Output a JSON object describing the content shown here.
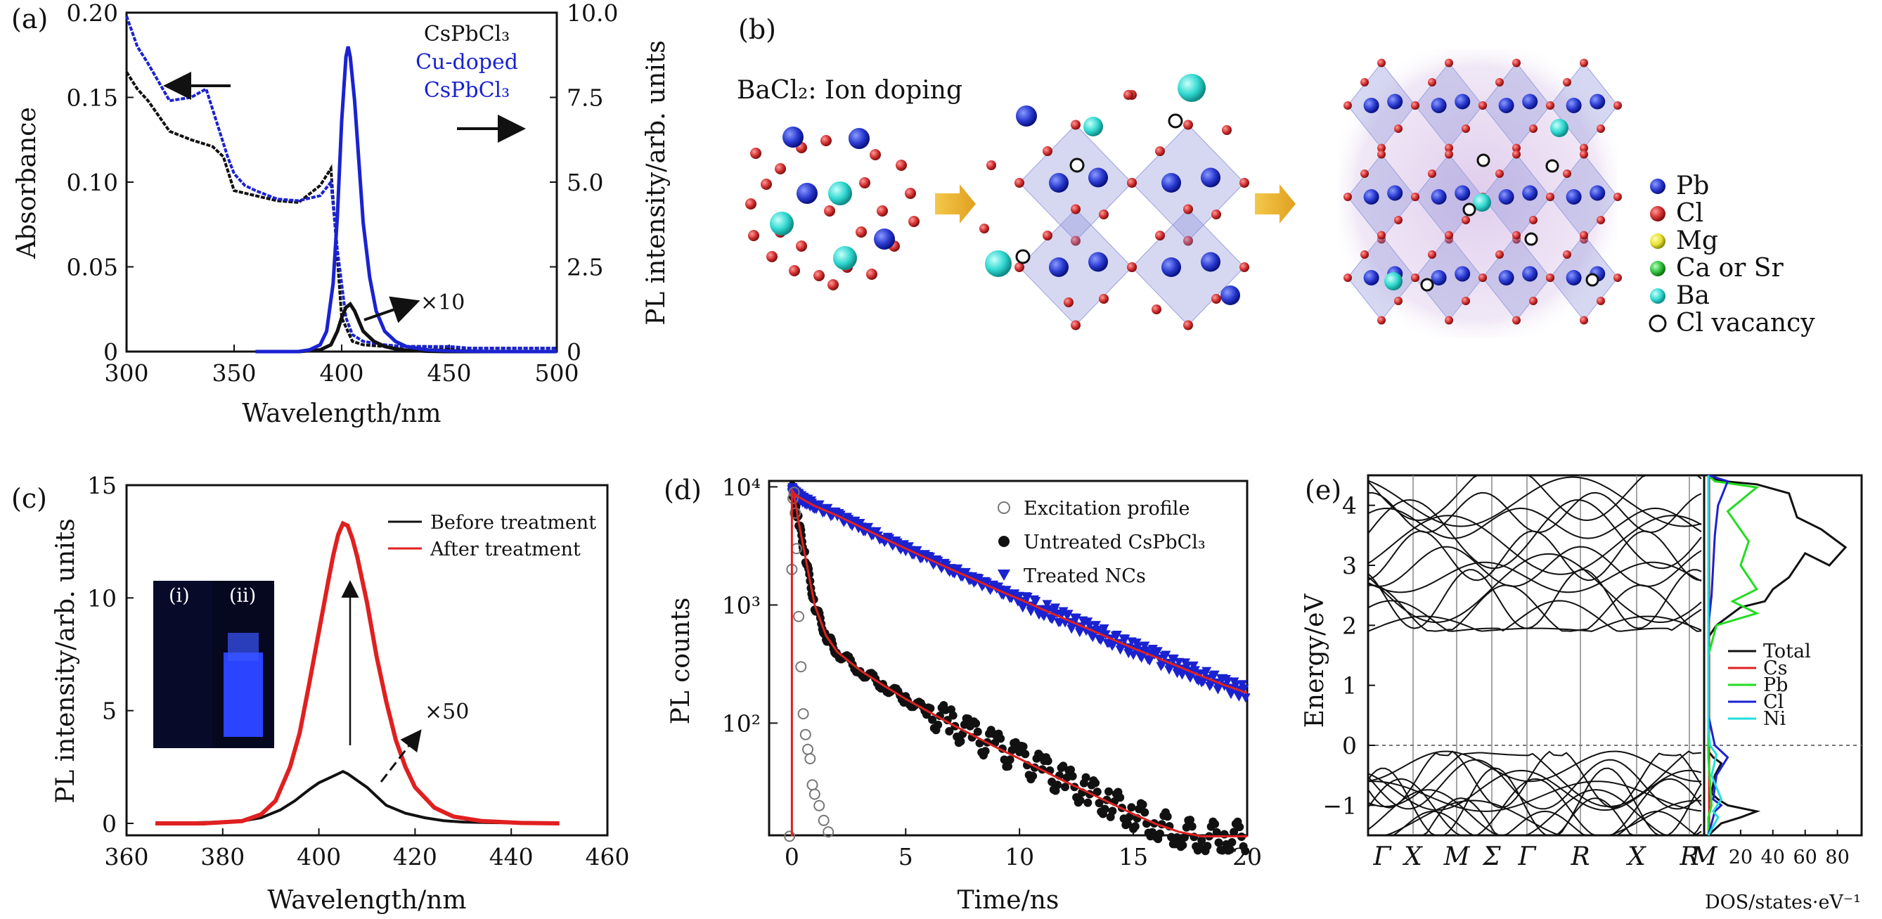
{
  "panels": {
    "a": {
      "label": "(a)",
      "xlabel": "Wavelength/nm",
      "ylabel_left": "Absorbance",
      "ylabel_right": "PL intensity/arb. units",
      "x_ticks": [
        "300",
        "350",
        "400",
        "450",
        "500"
      ],
      "y_ticks_left": [
        "0",
        "0.05",
        "0.10",
        "0.15",
        "0.20"
      ],
      "y_ticks_right": [
        "0",
        "2.5",
        "5.0",
        "7.5",
        "10.0"
      ],
      "legend": [
        "CsPbCl₃",
        "Cu-doped",
        "CsPbCl₃"
      ],
      "annotation": "×10"
    },
    "b": {
      "label": "(b)",
      "title": "BaCl₂: Ion doping",
      "legend": [
        {
          "label": "Pb",
          "color": "#2a3ad0"
        },
        {
          "label": "Cl",
          "color": "#d23030"
        },
        {
          "label": "Mg",
          "color": "#e8e030"
        },
        {
          "label": "Ca or Sr",
          "color": "#30c040"
        },
        {
          "label": "Ba",
          "color": "#30d8d0"
        },
        {
          "label": "Cl vacancy",
          "color": "#ffffff"
        }
      ]
    },
    "c": {
      "label": "(c)",
      "xlabel": "Wavelength/nm",
      "ylabel": "PL intensity/arb. units",
      "x_ticks": [
        "360",
        "380",
        "400",
        "420",
        "440",
        "460"
      ],
      "y_ticks": [
        "0",
        "5",
        "10",
        "15"
      ],
      "legend": [
        "Before treatment",
        "After treatment"
      ],
      "inset_labels": [
        "(i)",
        "(ii)"
      ],
      "annotation": "×50"
    },
    "d": {
      "label": "(d)",
      "xlabel": "Time/ns",
      "ylabel": "PL counts",
      "x_ticks": [
        "0",
        "5",
        "10",
        "15",
        "20"
      ],
      "y_ticks": [
        "10²",
        "10³",
        "10⁴"
      ],
      "legend": [
        "Excitation profile",
        "Untreated CsPbCl₃",
        "Treated NCs"
      ]
    },
    "e": {
      "label": "(e)",
      "ylabel": "Energy/eV",
      "y_ticks": [
        "4",
        "3",
        "2",
        "1",
        "0",
        "−1"
      ],
      "k_labels": [
        "Γ",
        "X",
        "M",
        "Σ",
        "Γ",
        "R",
        "X",
        "R",
        "M"
      ],
      "dos_ticks": [
        "20",
        "40",
        "60",
        "80"
      ],
      "dos_label": "DOS/states·eV⁻¹",
      "legend": [
        "Total",
        "Cs",
        "Pb",
        "Cl",
        "Ni"
      ]
    }
  },
  "chart_data": [
    {
      "panel": "a",
      "type": "line",
      "xlim": [
        300,
        500
      ],
      "ylim": [
        0,
        0.2
      ],
      "y2lim": [
        0,
        10
      ],
      "series": [
        {
          "name": "CsPbCl₃",
          "axis": "left",
          "color": "#111111",
          "x": [
            300,
            305,
            310,
            320,
            330,
            340,
            345,
            350,
            360,
            370,
            380,
            390,
            395,
            400,
            405,
            410,
            420,
            430,
            440,
            450,
            460,
            470,
            480,
            490,
            500
          ],
          "y": [
            0.165,
            0.155,
            0.148,
            0.13,
            0.125,
            0.121,
            0.115,
            0.095,
            0.092,
            0.089,
            0.088,
            0.098,
            0.108,
            0.02,
            0.006,
            0.004,
            0.003,
            0.003,
            0.003,
            0.002,
            0.002,
            0.002,
            0.002,
            0.002,
            0.002
          ]
        },
        {
          "name": "Cu-doped CsPbCl₃",
          "axis": "left",
          "color": "#1a22d0",
          "x": [
            300,
            305,
            310,
            320,
            330,
            337,
            342,
            347,
            350,
            355,
            360,
            370,
            380,
            390,
            395,
            398,
            402,
            405,
            410,
            420,
            430,
            440,
            450,
            460,
            470,
            480,
            490,
            500
          ],
          "y": [
            0.198,
            0.18,
            0.17,
            0.148,
            0.15,
            0.155,
            0.135,
            0.115,
            0.105,
            0.098,
            0.095,
            0.09,
            0.089,
            0.092,
            0.1,
            0.06,
            0.02,
            0.01,
            0.006,
            0.004,
            0.003,
            0.003,
            0.003,
            0.002,
            0.002,
            0.002,
            0.002,
            0.002
          ]
        },
        {
          "name": "CsPbCl₃ PL",
          "axis": "right",
          "color": "#111111",
          "x": [
            360,
            380,
            390,
            395,
            398,
            400,
            402,
            404,
            406,
            408,
            410,
            415,
            420,
            425,
            430,
            440,
            450,
            470,
            500
          ],
          "y": [
            0,
            0,
            0.05,
            0.2,
            0.6,
            1.0,
            1.3,
            1.4,
            1.2,
            0.9,
            0.6,
            0.3,
            0.15,
            0.08,
            0.04,
            0.01,
            0,
            0,
            0
          ]
        },
        {
          "name": "Cu-doped CsPbCl₃ PL",
          "axis": "right",
          "color": "#1a22d0",
          "x": [
            360,
            380,
            385,
            390,
            393,
            396,
            398,
            400,
            402,
            403,
            404,
            406,
            408,
            410,
            413,
            416,
            420,
            425,
            430,
            440,
            450,
            470,
            500
          ],
          "y": [
            0,
            0,
            0.05,
            0.2,
            0.6,
            2.0,
            4.0,
            6.8,
            8.7,
            9.0,
            8.7,
            7.4,
            5.6,
            3.8,
            2.2,
            1.2,
            0.6,
            0.3,
            0.15,
            0.05,
            0.02,
            0,
            0
          ]
        }
      ]
    },
    {
      "panel": "c",
      "type": "line",
      "xlim": [
        360,
        460
      ],
      "ylim": [
        0,
        15
      ],
      "series": [
        {
          "name": "Before treatment",
          "color": "#111111",
          "x": [
            366,
            372,
            378,
            384,
            388,
            392,
            395,
            398,
            400,
            402,
            404,
            405,
            406,
            408,
            410,
            412,
            414,
            418,
            422,
            426,
            430,
            436,
            442,
            450
          ],
          "y": [
            0,
            0.02,
            0.05,
            0.1,
            0.25,
            0.6,
            1.0,
            1.5,
            1.8,
            2.0,
            2.2,
            2.3,
            2.2,
            1.9,
            1.6,
            1.2,
            0.8,
            0.45,
            0.25,
            0.12,
            0.06,
            0.03,
            0.02,
            0
          ]
        },
        {
          "name": "After treatment",
          "color": "#e02020",
          "x": [
            366,
            376,
            384,
            388,
            391,
            394,
            396,
            398,
            400,
            402,
            403,
            404,
            405,
            406,
            407,
            408,
            410,
            412,
            414,
            416,
            418,
            420,
            424,
            428,
            434,
            442,
            450
          ],
          "y": [
            0,
            0,
            0.1,
            0.4,
            1.0,
            2.5,
            4.0,
            6.2,
            8.5,
            10.8,
            11.9,
            12.8,
            13.3,
            13.2,
            12.6,
            11.8,
            9.8,
            7.4,
            5.4,
            3.7,
            2.5,
            1.6,
            0.7,
            0.3,
            0.1,
            0.02,
            0
          ]
        }
      ]
    },
    {
      "panel": "d",
      "type": "scatter",
      "xlim": [
        -1,
        20
      ],
      "ylim_log": [
        1.05,
        4.05
      ],
      "series": [
        {
          "name": "Excitation profile",
          "marker": "open-circle",
          "color": "#777777",
          "x": [
            -0.1,
            0,
            0.05,
            0.1,
            0.15,
            0.2,
            0.3,
            0.4,
            0.5,
            0.6,
            0.7,
            0.8,
            0.9,
            1.0,
            1.2,
            1.4,
            1.6
          ],
          "y": [
            11,
            2000,
            8000,
            9000,
            6000,
            3000,
            800,
            300,
            120,
            80,
            60,
            50,
            30,
            25,
            20,
            15,
            12
          ]
        },
        {
          "name": "Untreated CsPbCl₃",
          "marker": "filled-circle",
          "color": "#111111",
          "x": [
            0,
            0.1,
            0.3,
            0.6,
            1,
            1.5,
            2,
            3,
            4,
            5,
            6,
            7,
            8,
            9,
            10,
            11,
            12,
            13,
            14,
            15,
            16,
            17,
            18,
            19,
            20
          ],
          "y": [
            9500,
            8500,
            5000,
            2500,
            1000,
            550,
            400,
            280,
            210,
            160,
            125,
            98,
            78,
            62,
            50,
            40,
            32,
            26,
            21,
            17,
            14,
            12,
            11,
            11,
            11
          ]
        },
        {
          "name": "Treated NCs",
          "marker": "filled-triangle",
          "color": "#1a22d0",
          "x": [
            0,
            0.1,
            0.3,
            0.6,
            1,
            2,
            3,
            4,
            5,
            6,
            7,
            8,
            9,
            10,
            11,
            12,
            13,
            14,
            15,
            16,
            17,
            18,
            19,
            20
          ],
          "y": [
            9500,
            8800,
            8200,
            7600,
            6900,
            5700,
            4600,
            3700,
            3000,
            2450,
            2000,
            1650,
            1350,
            1120,
            920,
            760,
            630,
            520,
            430,
            360,
            300,
            250,
            210,
            180
          ]
        }
      ]
    },
    {
      "panel": "e",
      "type": "line",
      "ylim": [
        -1.5,
        4.5
      ],
      "dos_xlim": [
        0,
        95
      ],
      "series": [
        {
          "name": "Total",
          "color": "#111111",
          "x": [
            0,
            2,
            10,
            30,
            50,
            55,
            70,
            85,
            75,
            60,
            50,
            40,
            35,
            20,
            5,
            0,
            0,
            0,
            0,
            0,
            3,
            8,
            4,
            2,
            6,
            12,
            30,
            20,
            8,
            0
          ],
          "y": [
            4.5,
            4.45,
            4.4,
            4.35,
            4.2,
            3.8,
            3.6,
            3.3,
            3.0,
            3.2,
            2.8,
            2.6,
            2.4,
            2.3,
            2.0,
            1.8,
            1.0,
            0.5,
            0,
            -0.1,
            -0.2,
            -0.3,
            -0.5,
            -0.8,
            -0.9,
            -1.0,
            -1.1,
            -1.2,
            -1.3,
            -1.5
          ]
        },
        {
          "name": "Cs",
          "color": "#e02020",
          "x": [
            0.5,
            0.5,
            0.5,
            0.5
          ],
          "y": [
            4.5,
            2.0,
            -0.5,
            -1.5
          ]
        },
        {
          "name": "Pb",
          "color": "#22dd22",
          "x": [
            0,
            4,
            30,
            12,
            25,
            20,
            30,
            15,
            30,
            5,
            0,
            0,
            0,
            2,
            0,
            0
          ],
          "y": [
            4.5,
            4.4,
            4.3,
            3.9,
            3.4,
            3.0,
            2.6,
            2.4,
            2.2,
            2.0,
            1.5,
            0.0,
            -0.2,
            -1.0,
            -1.2,
            -1.5
          ]
        },
        {
          "name": "Cl",
          "color": "#1a22d0",
          "x": [
            0,
            12,
            6,
            4,
            3,
            2,
            0,
            0,
            4,
            12,
            5,
            3,
            8,
            4,
            2,
            0
          ],
          "y": [
            4.5,
            4.4,
            4.0,
            3.5,
            3.0,
            2.5,
            2.0,
            0.5,
            0,
            -0.2,
            -0.5,
            -0.9,
            -1.0,
            -1.1,
            -1.3,
            -1.5
          ]
        },
        {
          "name": "Ni",
          "color": "#22dddd",
          "x": [
            0,
            0,
            0,
            1,
            5,
            2,
            8,
            3,
            6,
            2,
            0
          ],
          "y": [
            4.5,
            2.0,
            0.3,
            0,
            -0.15,
            -0.5,
            -0.9,
            -1.1,
            -1.2,
            -1.4,
            -1.5
          ]
        }
      ]
    }
  ]
}
